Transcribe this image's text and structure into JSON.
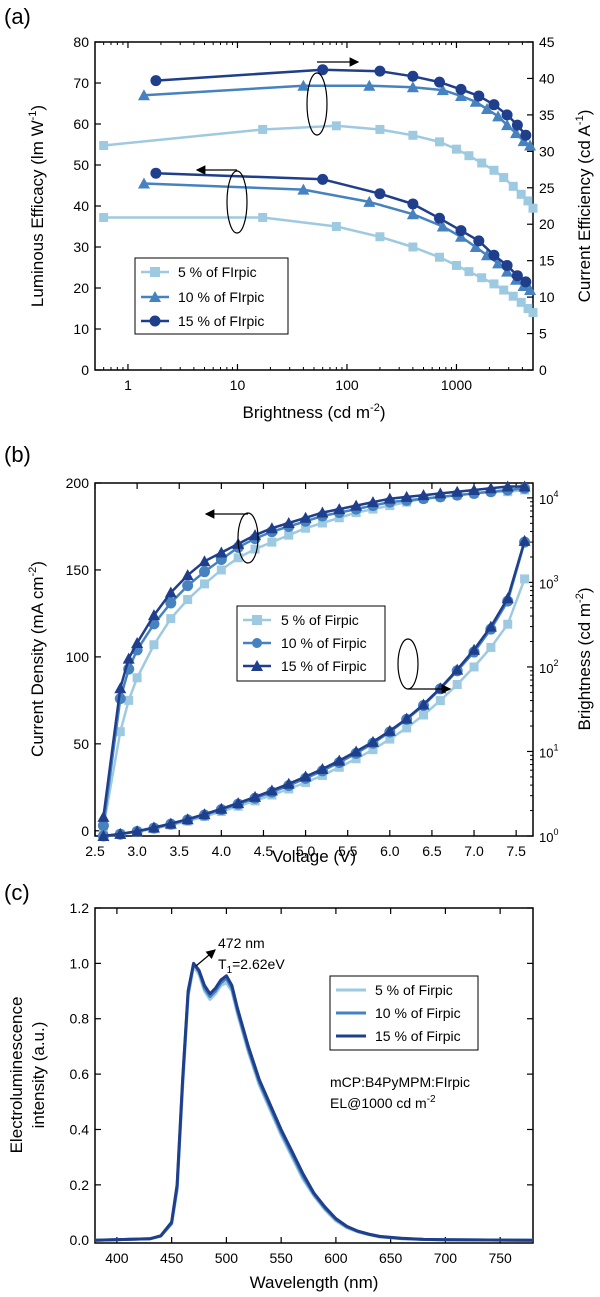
{
  "colors": {
    "light": "#9ecae1",
    "mid": "#4682c0",
    "dark": "#1f3f8c",
    "axis": "#000000"
  },
  "chart_data": [
    {
      "panel_label": "(a)",
      "type": "line",
      "xlabel": "Brightness (cd m",
      "xlabel_sup": "-2",
      "xlabel_tail": ")",
      "ylabel": "Luminous Efficacy (lm W",
      "ylabel_sup": "-1",
      "ylabel_tail": ")",
      "y2label": "Current Efficiency (cd A",
      "y2label_sup": "-1",
      "y2label_tail": ")",
      "xscale": "log",
      "xlim": [
        0.5,
        5000
      ],
      "ylim": [
        0,
        80
      ],
      "y2lim": [
        0,
        45
      ],
      "x_ticks": [
        1,
        10,
        100,
        1000
      ],
      "x_tick_labels": [
        "1",
        "10",
        "100",
        "1000"
      ],
      "y_ticks": [
        0,
        10,
        20,
        30,
        40,
        50,
        60,
        70,
        80
      ],
      "y_tick_labels": [
        "0",
        "10",
        "20",
        "30",
        "40",
        "50",
        "60",
        "70",
        "80"
      ],
      "y2_ticks": [
        0,
        5,
        10,
        15,
        20,
        25,
        30,
        35,
        40,
        45
      ],
      "y2_tick_labels": [
        "0",
        "5",
        "10",
        "15",
        "20",
        "25",
        "30",
        "35",
        "40",
        "45"
      ],
      "legend_position": "lower-left",
      "series": [
        {
          "name": "5 % of FIrpic",
          "color": "light",
          "marker": "square",
          "axis": "left",
          "x": [
            0.6,
            17,
            80,
            200,
            400,
            700,
            1000,
            1300,
            1700,
            2200,
            2700,
            3300,
            3900,
            4500,
            5000
          ],
          "y": [
            37.2,
            37.2,
            35,
            32.5,
            30,
            27.5,
            25.5,
            24,
            22.5,
            21,
            19.5,
            18,
            16.5,
            15,
            14
          ]
        },
        {
          "name": "10 % of FIrpic",
          "color": "mid",
          "marker": "triangle",
          "axis": "left",
          "x": [
            1.4,
            40,
            160,
            400,
            750,
            1100,
            1500,
            1900,
            2400,
            2900,
            3500,
            4100,
            4700
          ],
          "y": [
            45.5,
            44,
            41,
            38,
            35,
            32.5,
            30,
            28,
            26,
            24,
            22,
            20.5,
            19.5
          ]
        },
        {
          "name": "15 % of FIrpic",
          "color": "dark",
          "marker": "circle",
          "axis": "left",
          "x": [
            1.8,
            60,
            200,
            400,
            700,
            1100,
            1600,
            2200,
            2900,
            3600,
            4300
          ],
          "y": [
            48,
            46.5,
            43,
            40.5,
            37,
            34,
            31.5,
            28,
            25.5,
            23,
            21.5
          ]
        },
        {
          "name": "5 % of FIrpic CE",
          "color": "light",
          "marker": "square",
          "axis": "right",
          "x": [
            0.6,
            17,
            80,
            200,
            400,
            700,
            1000,
            1300,
            1700,
            2200,
            2700,
            3300,
            3900,
            4500,
            5000
          ],
          "y": [
            30.8,
            33,
            33.5,
            33,
            32.2,
            31.3,
            30.3,
            29.4,
            28.4,
            27.4,
            26.4,
            25.2,
            24.1,
            23.2,
            22.2
          ]
        },
        {
          "name": "10 % of FIrpic CE",
          "color": "mid",
          "marker": "triangle",
          "axis": "right",
          "x": [
            1.4,
            40,
            160,
            400,
            750,
            1100,
            1500,
            1900,
            2400,
            2900,
            3500,
            4100,
            4700
          ],
          "y": [
            37.7,
            39,
            39,
            38.8,
            38.4,
            37.6,
            36.8,
            35.8,
            34.8,
            33.6,
            32.5,
            31.4,
            30.8
          ]
        },
        {
          "name": "15 % of FIrpic CE",
          "color": "dark",
          "marker": "circle",
          "axis": "right",
          "x": [
            1.8,
            60,
            200,
            400,
            700,
            1100,
            1600,
            2200,
            2900,
            3600,
            4300
          ],
          "y": [
            39.7,
            41.2,
            41,
            40.3,
            39.5,
            38.5,
            37.6,
            36.4,
            35,
            33.6,
            32.2
          ]
        }
      ],
      "annotations": {
        "ellipse_arrows": [
          "right",
          "left"
        ]
      }
    },
    {
      "panel_label": "(b)",
      "type": "line",
      "xlabel": "Voltage (V)",
      "ylabel": "Current Density (mA cm",
      "ylabel_sup": "-2",
      "ylabel_tail": ")",
      "y2label": "Brightness (cd m",
      "y2label_sup": "-2",
      "y2label_tail": ")",
      "xlim": [
        2.5,
        7.7
      ],
      "ylim": [
        -3,
        200
      ],
      "y2scale": "log",
      "y2lim": [
        1,
        15000
      ],
      "x_ticks": [
        2.5,
        3.0,
        3.5,
        4.0,
        4.5,
        5.0,
        5.5,
        6.0,
        6.5,
        7.0,
        7.5
      ],
      "x_tick_labels": [
        "2.5",
        "3.0",
        "3.5",
        "4.0",
        "4.5",
        "5.0",
        "5.5",
        "6.0",
        "6.5",
        "7.0",
        "7.5"
      ],
      "y_ticks": [
        0,
        50,
        100,
        150,
        200
      ],
      "y_tick_labels": [
        "0",
        "50",
        "100",
        "150",
        "200"
      ],
      "y2_ticks": [
        1,
        10,
        100,
        1000,
        10000
      ],
      "y2_tick_base": [
        "10",
        "10",
        "10",
        "10",
        "10"
      ],
      "y2_tick_exp": [
        "0",
        "1",
        "2",
        "3",
        "4"
      ],
      "legend_position": "center",
      "series": [
        {
          "name": "5 % of Firpic",
          "color": "light",
          "marker": "square",
          "axis": "left",
          "x": [
            2.6,
            2.8,
            2.9,
            3.0,
            3.2,
            3.4,
            3.6,
            3.8,
            4.0,
            4.2,
            4.4,
            4.6,
            4.8,
            5.0,
            5.2,
            5.4,
            5.6,
            5.8,
            6.0,
            6.2,
            6.4,
            6.6,
            6.8,
            7.0,
            7.2,
            7.4,
            7.6
          ],
          "y": [
            2,
            57,
            75,
            88,
            107,
            122,
            133,
            142,
            150,
            157,
            162,
            166,
            170,
            174,
            177,
            180,
            183,
            185,
            187,
            189,
            191,
            192,
            193,
            194,
            195,
            195,
            196
          ]
        },
        {
          "name": "10 % of Firpic",
          "color": "mid",
          "marker": "circle",
          "axis": "left",
          "x": [
            2.6,
            2.8,
            2.9,
            3.0,
            3.2,
            3.4,
            3.6,
            3.8,
            4.0,
            4.2,
            4.4,
            4.6,
            4.8,
            5.0,
            5.2,
            5.4,
            5.6,
            5.8,
            6.0,
            6.2,
            6.4,
            6.6,
            6.8,
            7.0,
            7.2,
            7.4,
            7.6
          ],
          "y": [
            3,
            76,
            93,
            104,
            119,
            131,
            141,
            149,
            156,
            163,
            168,
            172,
            175,
            178,
            181,
            183,
            185,
            187,
            189,
            190,
            191,
            192,
            193,
            194,
            195,
            196,
            197
          ]
        },
        {
          "name": "15 % of Firpic",
          "color": "dark",
          "marker": "triangle",
          "axis": "left",
          "x": [
            2.6,
            2.8,
            2.9,
            3.0,
            3.2,
            3.4,
            3.6,
            3.8,
            4.0,
            4.2,
            4.4,
            4.6,
            4.8,
            5.0,
            5.2,
            5.4,
            5.6,
            5.8,
            6.0,
            6.2,
            6.4,
            6.6,
            6.8,
            7.0,
            7.2,
            7.4,
            7.6
          ],
          "y": [
            8,
            82,
            99,
            108,
            124,
            137,
            147,
            155,
            160,
            165,
            170,
            174,
            177,
            180,
            183,
            185,
            187,
            189,
            191,
            192,
            193,
            194,
            195,
            196,
            197,
            198,
            198
          ]
        },
        {
          "name": "5 % of Firpic L",
          "color": "light",
          "marker": "square",
          "axis": "right",
          "x": [
            2.6,
            2.8,
            3.0,
            3.2,
            3.4,
            3.6,
            3.8,
            4.0,
            4.2,
            4.4,
            4.6,
            4.8,
            5.0,
            5.2,
            5.4,
            5.6,
            5.8,
            6.0,
            6.2,
            6.4,
            6.6,
            6.8,
            7.0,
            7.2,
            7.4,
            7.6
          ],
          "y": [
            1.0,
            1.05,
            1.12,
            1.22,
            1.35,
            1.5,
            1.7,
            1.95,
            2.25,
            2.6,
            3.05,
            3.6,
            4.3,
            5.2,
            6.5,
            8.2,
            10.5,
            14,
            19,
            27,
            40,
            62,
            100,
            170,
            320,
            1100
          ]
        },
        {
          "name": "10 % of Firpic L",
          "color": "mid",
          "marker": "circle",
          "axis": "right",
          "x": [
            2.6,
            2.8,
            3.0,
            3.2,
            3.4,
            3.6,
            3.8,
            4.0,
            4.2,
            4.4,
            4.6,
            4.8,
            5.0,
            5.2,
            5.4,
            5.6,
            5.8,
            6.0,
            6.2,
            6.4,
            6.6,
            6.8,
            7.0,
            7.2,
            7.4,
            7.6
          ],
          "y": [
            1.0,
            1.05,
            1.13,
            1.24,
            1.38,
            1.55,
            1.77,
            2.05,
            2.38,
            2.8,
            3.3,
            3.95,
            4.8,
            5.9,
            7.4,
            9.5,
            12.5,
            17,
            24,
            35,
            55,
            90,
            150,
            280,
            600,
            3000
          ]
        },
        {
          "name": "15 % of Firpic L",
          "color": "dark",
          "marker": "triangle",
          "axis": "right",
          "x": [
            2.6,
            2.8,
            3.0,
            3.2,
            3.4,
            3.6,
            3.8,
            4.0,
            4.2,
            4.4,
            4.6,
            4.8,
            5.0,
            5.2,
            5.4,
            5.6,
            5.8,
            6.0,
            6.2,
            6.4,
            6.6,
            6.8,
            7.0,
            7.2,
            7.4,
            7.6
          ],
          "y": [
            1.0,
            1.06,
            1.14,
            1.26,
            1.4,
            1.58,
            1.81,
            2.1,
            2.45,
            2.9,
            3.45,
            4.15,
            5.05,
            6.2,
            7.8,
            10,
            13,
            17.5,
            24.5,
            36,
            56,
            93,
            160,
            300,
            650,
            3100
          ]
        }
      ],
      "annotations": {
        "ellipse_arrows": [
          "left",
          "right"
        ]
      }
    },
    {
      "panel_label": "(c)",
      "type": "line",
      "xlabel": "Wavelength (nm)",
      "ylabel": "Electroluminescence",
      "ylabel2": "intensity (a.u.)",
      "xlim": [
        380,
        780
      ],
      "ylim": [
        -0.01,
        1.2
      ],
      "x_ticks": [
        400,
        450,
        500,
        550,
        600,
        650,
        700,
        750
      ],
      "x_tick_labels": [
        "400",
        "450",
        "500",
        "550",
        "600",
        "650",
        "700",
        "750"
      ],
      "y_ticks": [
        0.0,
        0.2,
        0.4,
        0.6,
        0.8,
        1.0,
        1.2
      ],
      "y_tick_labels": [
        "0.0",
        "0.2",
        "0.4",
        "0.6",
        "0.8",
        "1.0",
        "1.2"
      ],
      "legend_position": "upper-right",
      "peak_label": "472 nm",
      "triplet_label": "T",
      "triplet_sub": "1",
      "triplet_value": "=2.62eV",
      "note_line1": "mCP:B4PyMPM:FIrpic",
      "note_line2": "EL@1000 cd m",
      "note_sup": "-2",
      "series": [
        {
          "name": "5 % of Firpic",
          "color": "light",
          "x": [
            380,
            430,
            440,
            450,
            455,
            460,
            465,
            470,
            475,
            480,
            485,
            490,
            495,
            500,
            505,
            510,
            520,
            530,
            540,
            550,
            560,
            570,
            580,
            590,
            600,
            610,
            620,
            630,
            640,
            660,
            680,
            700,
            740,
            780
          ],
          "y": [
            0,
            0.005,
            0.015,
            0.06,
            0.18,
            0.55,
            0.88,
            0.99,
            0.96,
            0.9,
            0.87,
            0.89,
            0.92,
            0.93,
            0.9,
            0.82,
            0.68,
            0.56,
            0.47,
            0.38,
            0.3,
            0.22,
            0.16,
            0.11,
            0.07,
            0.045,
            0.03,
            0.02,
            0.012,
            0.006,
            0.003,
            0.002,
            0.001,
            0
          ]
        },
        {
          "name": "10 % of Firpic",
          "color": "mid",
          "x": [
            380,
            430,
            440,
            450,
            455,
            460,
            465,
            470,
            475,
            480,
            485,
            490,
            495,
            500,
            505,
            510,
            520,
            530,
            540,
            550,
            560,
            570,
            580,
            590,
            600,
            610,
            620,
            630,
            640,
            660,
            680,
            700,
            740,
            780
          ],
          "y": [
            0,
            0.005,
            0.015,
            0.06,
            0.19,
            0.57,
            0.89,
            1.0,
            0.97,
            0.91,
            0.88,
            0.9,
            0.93,
            0.945,
            0.91,
            0.83,
            0.69,
            0.57,
            0.48,
            0.39,
            0.31,
            0.23,
            0.165,
            0.115,
            0.075,
            0.048,
            0.032,
            0.021,
            0.013,
            0.006,
            0.003,
            0.002,
            0.001,
            0
          ]
        },
        {
          "name": "15 % of Firpic",
          "color": "dark",
          "x": [
            380,
            430,
            440,
            450,
            455,
            460,
            465,
            470,
            475,
            480,
            485,
            490,
            495,
            500,
            505,
            510,
            520,
            530,
            540,
            550,
            560,
            570,
            580,
            590,
            600,
            610,
            620,
            630,
            640,
            660,
            680,
            700,
            740,
            780
          ],
          "y": [
            0,
            0.005,
            0.016,
            0.065,
            0.2,
            0.58,
            0.9,
            1.0,
            0.975,
            0.92,
            0.89,
            0.91,
            0.94,
            0.955,
            0.92,
            0.84,
            0.7,
            0.58,
            0.49,
            0.4,
            0.32,
            0.24,
            0.17,
            0.12,
            0.078,
            0.05,
            0.033,
            0.022,
            0.014,
            0.007,
            0.003,
            0.002,
            0.001,
            0
          ]
        }
      ]
    }
  ]
}
